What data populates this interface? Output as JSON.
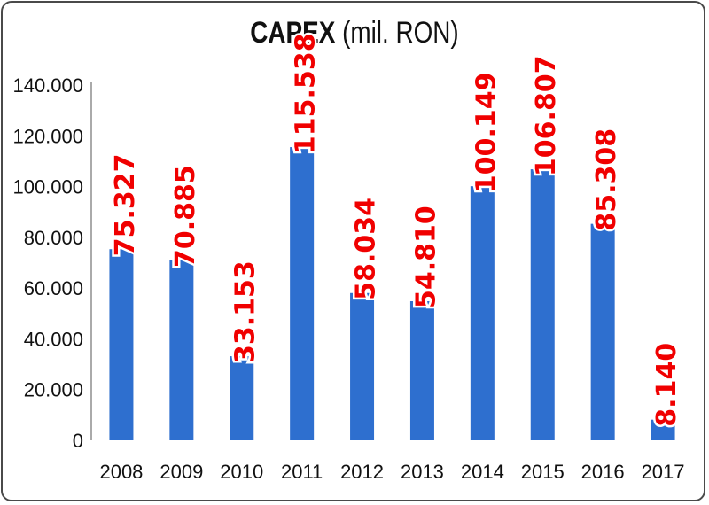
{
  "chart_data": {
    "type": "bar",
    "title": "CAPEX",
    "title_unit": "(mil. RON)",
    "categories": [
      "2008",
      "2009",
      "2010",
      "2011",
      "2012",
      "2013",
      "2014",
      "2015",
      "2016",
      "2017"
    ],
    "values": [
      75327,
      70885,
      33153,
      115538,
      58034,
      54810,
      100149,
      106807,
      85308,
      8140
    ],
    "value_labels": [
      "75.327",
      "70.885",
      "33.153",
      "115.538",
      "58.034",
      "54.810",
      "100.149",
      "106.807",
      "85.308",
      "8.140"
    ],
    "y_ticks": [
      0,
      20000,
      40000,
      60000,
      80000,
      100000,
      120000,
      140000
    ],
    "y_tick_labels": [
      "0",
      "20.000",
      "40.000",
      "60.000",
      "80.000",
      "100.000",
      "120.000",
      "140.000"
    ],
    "ylim": [
      0,
      140000
    ],
    "grid": false,
    "legend": "none",
    "colors": {
      "bar": "#2e6fcf",
      "label": "#f00000"
    }
  }
}
